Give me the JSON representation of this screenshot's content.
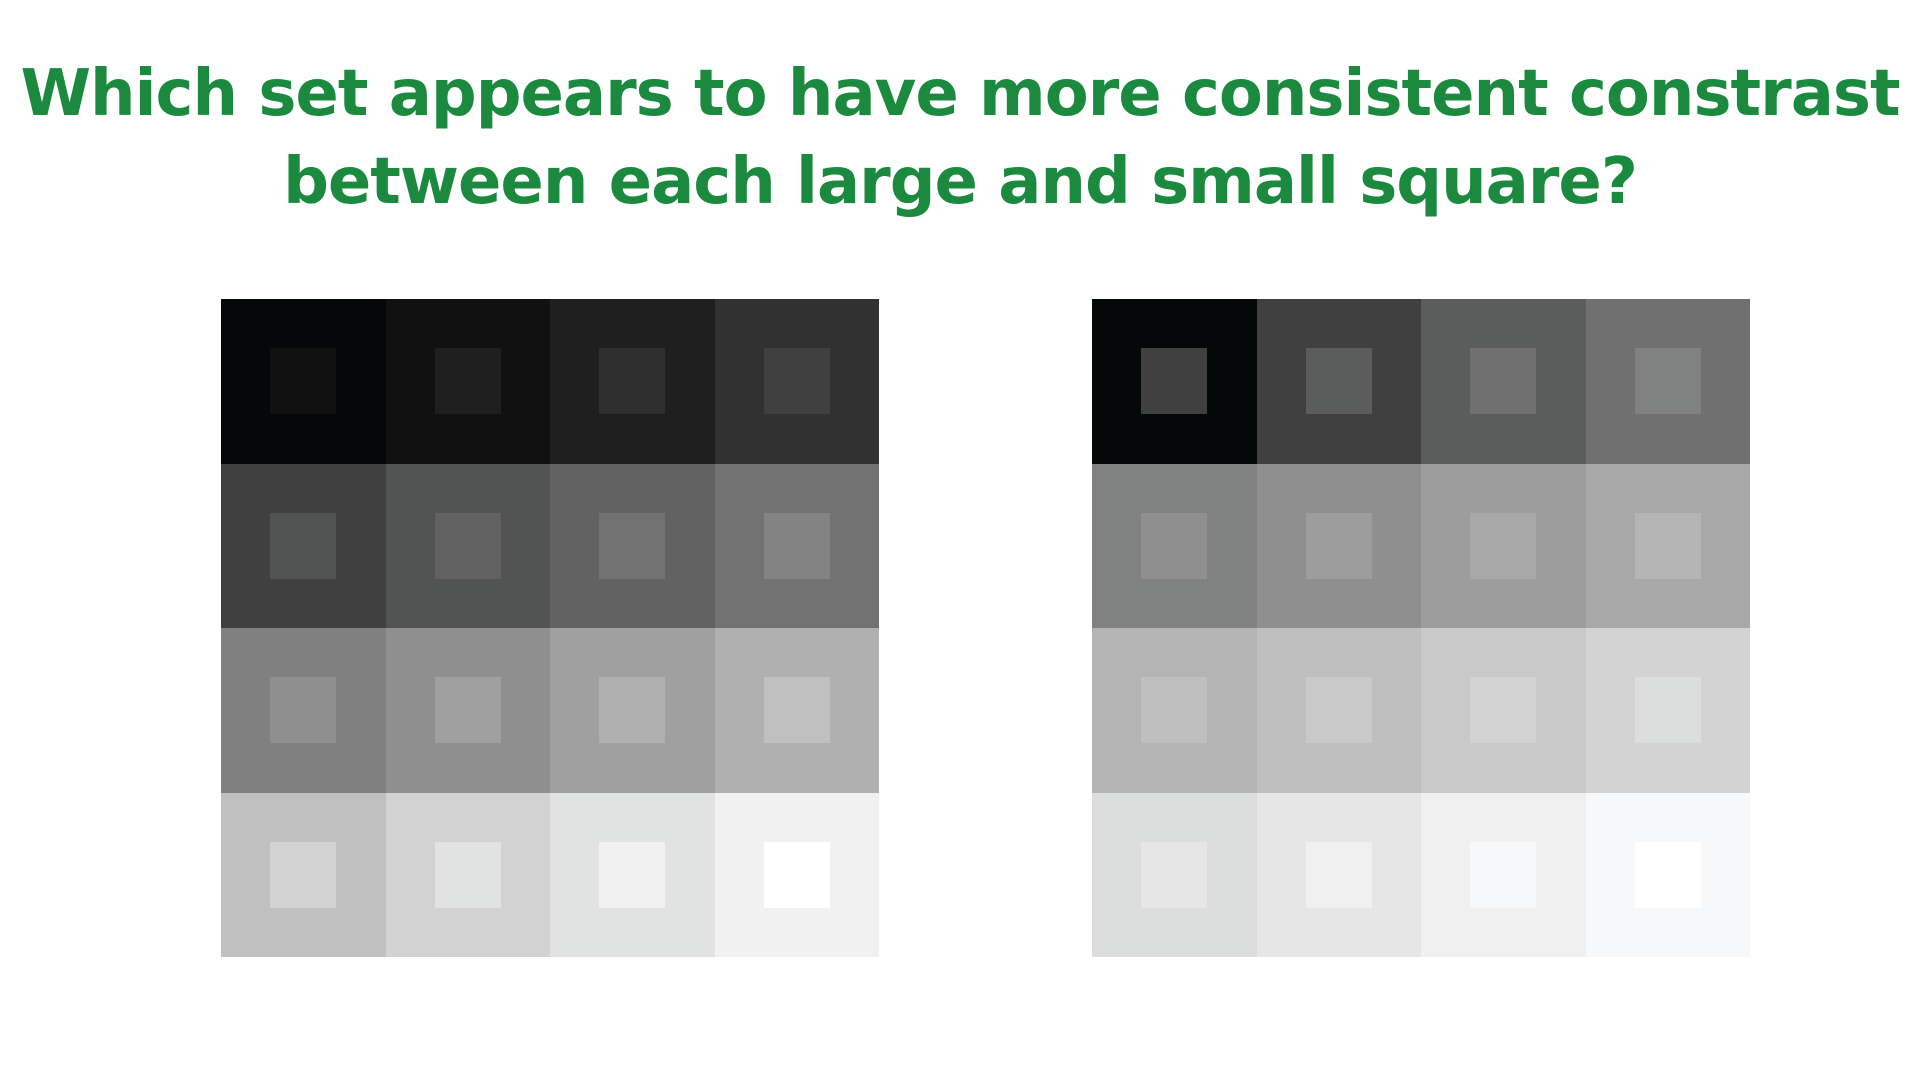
{
  "question": {
    "line1_regular": "Which set appears to have ",
    "line1_emphasis": "more consistent constrast",
    "line2": "between each large and small square?"
  },
  "sets": [
    {
      "name": "left-set",
      "outer_colors": [
        "#050809",
        "#111111",
        "#1f1f1f",
        "#313131",
        "#404040",
        "#525353",
        "#626262",
        "#717271",
        "#7f807f",
        "#8f8f8f",
        "#a0a0a0",
        "#afb0af",
        "#c0c0c0",
        "#d2d2d2",
        "#e1e2e2",
        "#f1f1f1"
      ],
      "inner_colors": [
        "#111111",
        "#1f1f1f",
        "#2f2f2f",
        "#404040",
        "#525353",
        "#626262",
        "#717271",
        "#828382",
        "#8f8f8f",
        "#a0a0a0",
        "#afb0af",
        "#c0c0c0",
        "#d2d2d2",
        "#e1e2e2",
        "#f1f1f1",
        "#ffffff"
      ]
    },
    {
      "name": "right-set",
      "outer_colors": [
        "#050809",
        "#404040",
        "#5b5c5c",
        "#707070",
        "#808181",
        "#8f8f8f",
        "#9d9d9d",
        "#a8a8a8",
        "#b4b4b4",
        "#bfbfbf",
        "#c9c9c9",
        "#d3d3d3",
        "#dcdddd",
        "#e6e6e6",
        "#f0f0f0",
        "#f7f8f9"
      ],
      "inner_colors": [
        "#404040",
        "#5b5c5c",
        "#707070",
        "#808181",
        "#8f8f8f",
        "#9d9d9d",
        "#a8a8a8",
        "#b4b4b4",
        "#bfbfbf",
        "#c9c9c9",
        "#d3d3d3",
        "#dcdddd",
        "#e6e6e6",
        "#f0f0f0",
        "#f7f8f9",
        "#ffffff"
      ]
    }
  ]
}
